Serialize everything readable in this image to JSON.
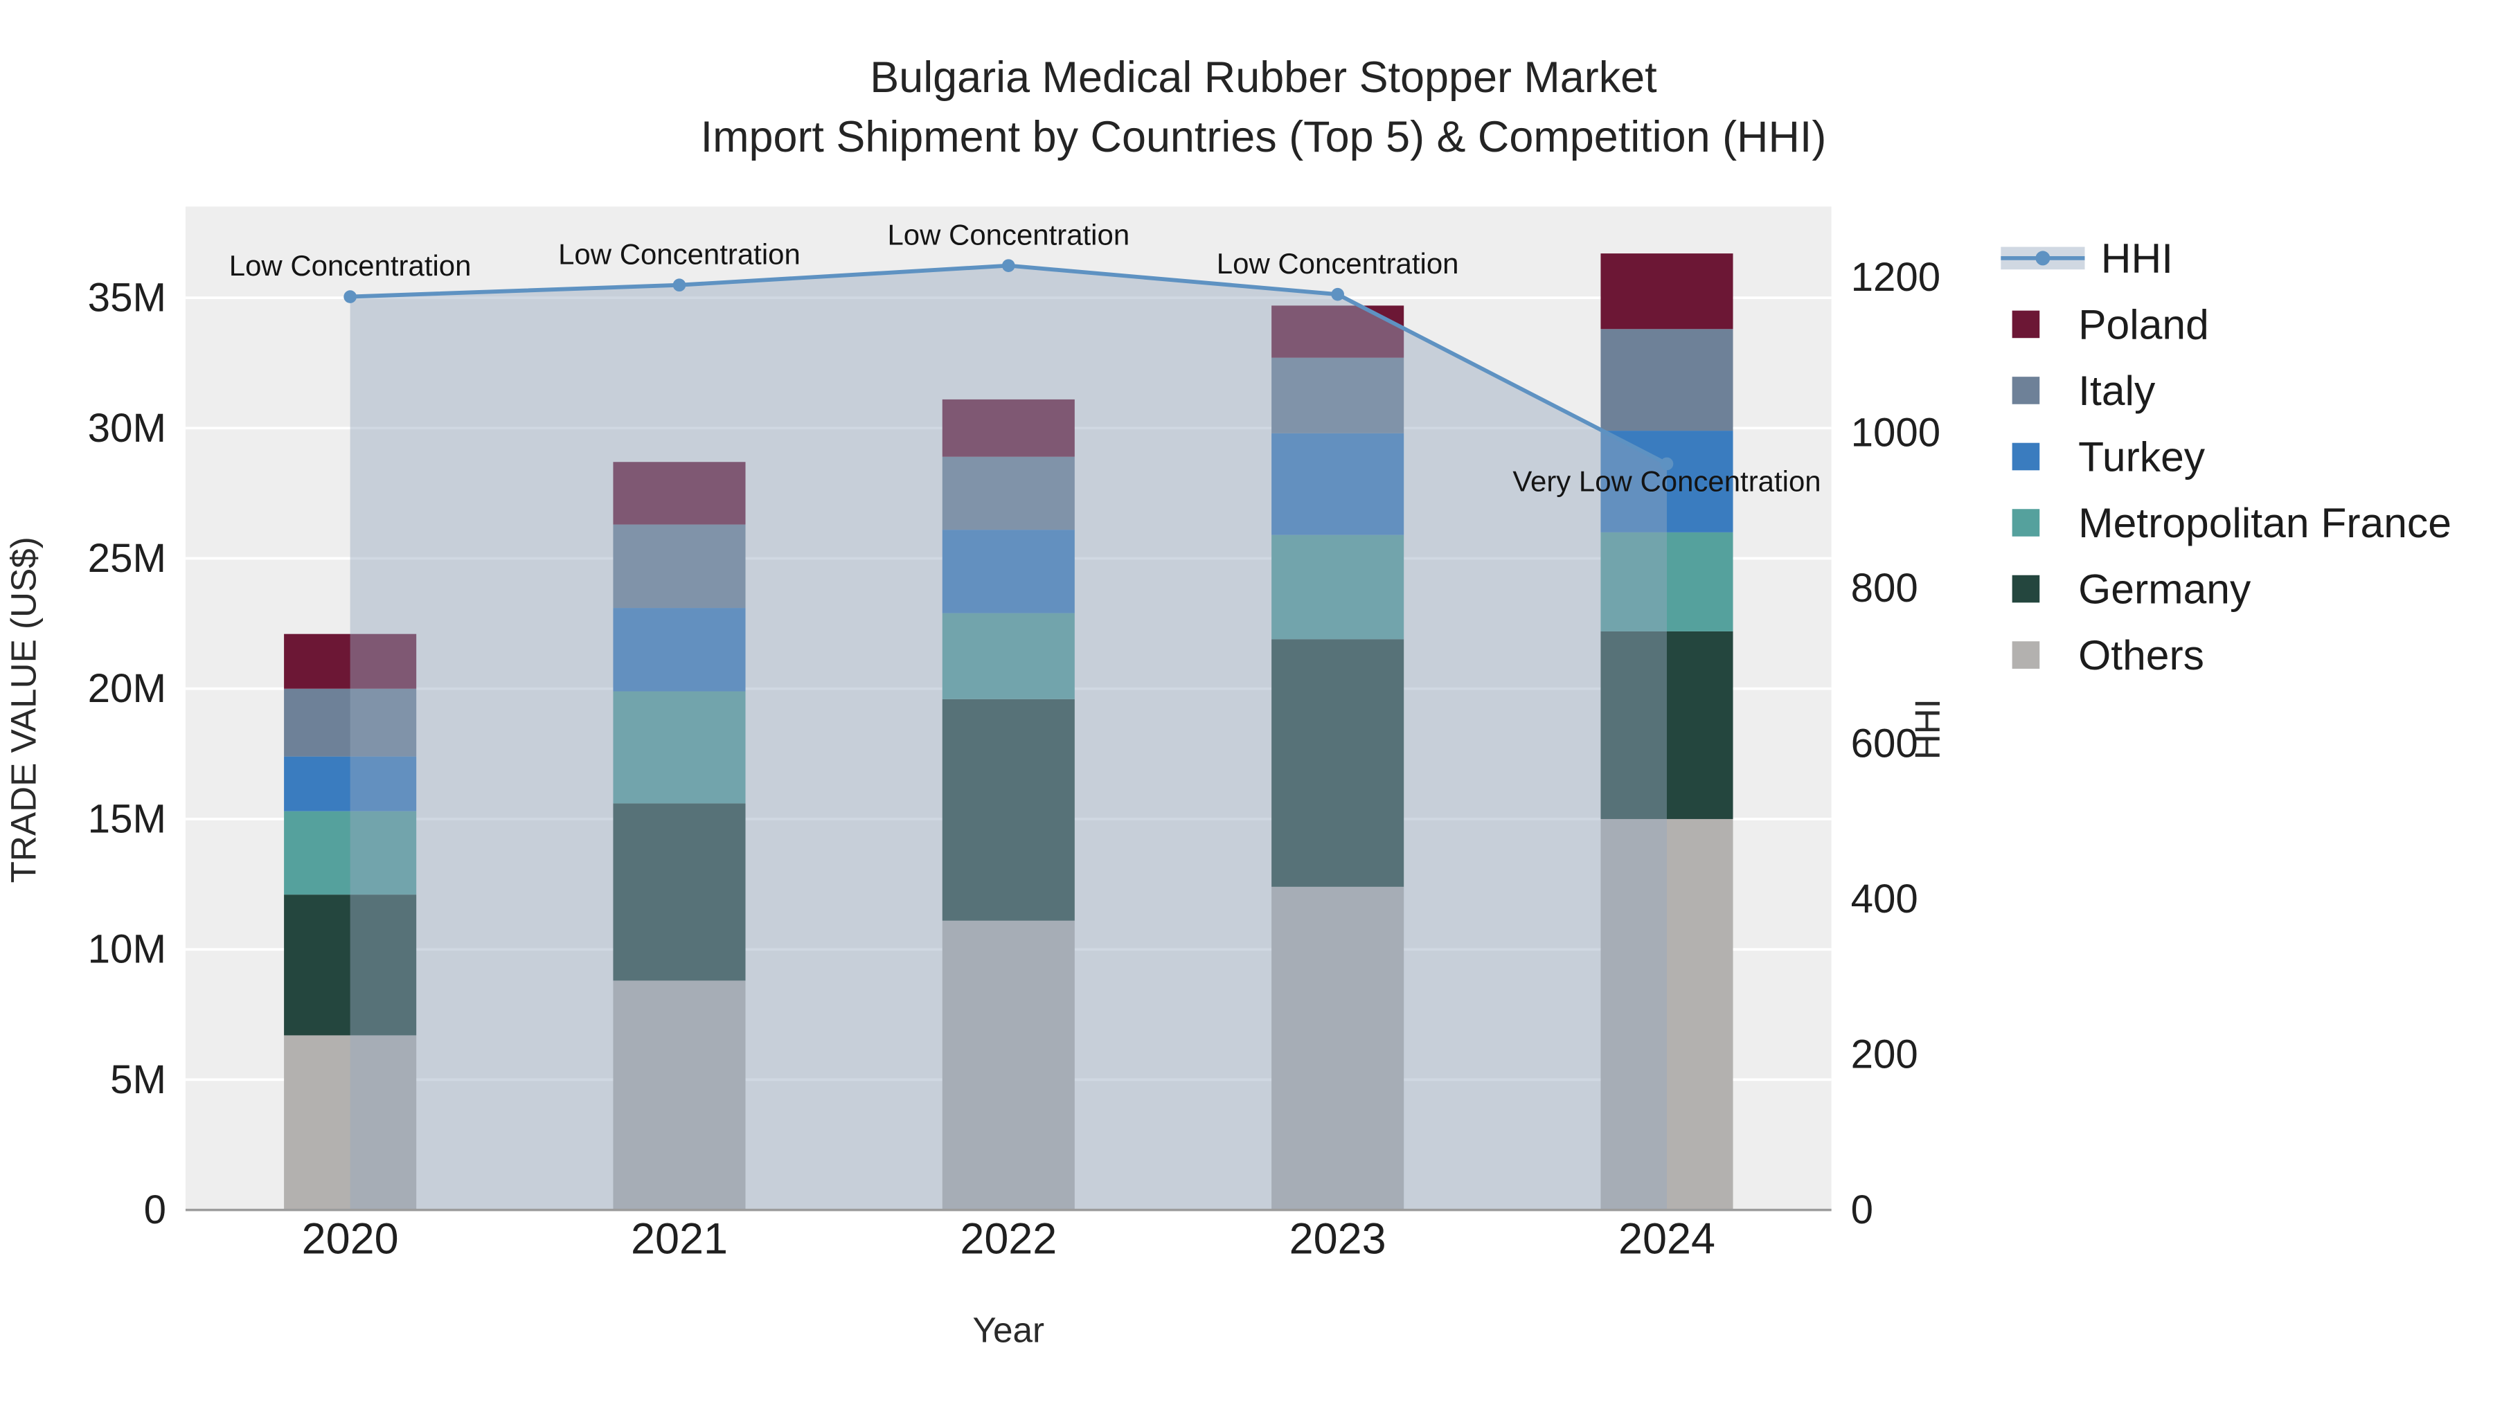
{
  "chart_data": {
    "type": "bar",
    "subtype": "stacked-bars-with-line-overlay",
    "title_lines": [
      "Bulgaria Medical Rubber Stopper Market",
      "Import Shipment by Countries (Top 5) & Competition (HHI)"
    ],
    "title": "Bulgaria Medical Rubber Stopper Market Import Shipment by Countries (Top 5) & Competition (HHI)",
    "xlabel": "Year",
    "ylabel_left": "TRADE VALUE (US$)",
    "ylabel_right": "HHI",
    "categories": [
      "2020",
      "2021",
      "2022",
      "2023",
      "2024"
    ],
    "bar_value_unit": "millions USD",
    "bar_series_bottom_to_top": [
      {
        "name": "Others",
        "color": "#b3b1af",
        "values": [
          6.7,
          8.8,
          11.1,
          12.4,
          15.0
        ]
      },
      {
        "name": "Germany",
        "color": "#24463e",
        "values": [
          5.4,
          6.8,
          8.5,
          9.5,
          7.2
        ]
      },
      {
        "name": "Metropolitan France",
        "color": "#55a19d",
        "values": [
          3.2,
          4.3,
          3.3,
          4.0,
          3.8
        ]
      },
      {
        "name": "Turkey",
        "color": "#3a7cbf",
        "values": [
          2.1,
          3.2,
          3.2,
          3.9,
          3.9
        ]
      },
      {
        "name": "Italy",
        "color": "#6e8198",
        "values": [
          2.6,
          3.2,
          2.8,
          2.9,
          3.9
        ]
      },
      {
        "name": "Poland",
        "color": "#6c1735",
        "values": [
          2.1,
          2.4,
          2.2,
          2.0,
          2.9
        ]
      }
    ],
    "bar_totals_millions": [
      22.1,
      28.7,
      31.1,
      34.7,
      36.7
    ],
    "line_series": {
      "name": "HHI",
      "axis": "right",
      "color": "#5e92c2",
      "area_fill": "rgba(150,168,190,0.45)",
      "values": [
        1175,
        1190,
        1215,
        1178,
        960
      ]
    },
    "annotations": [
      {
        "category": "2020",
        "text": "Low Concentration",
        "position": "above"
      },
      {
        "category": "2021",
        "text": "Low Concentration",
        "position": "above"
      },
      {
        "category": "2022",
        "text": "Low Concentration",
        "position": "above"
      },
      {
        "category": "2023",
        "text": "Low Concentration",
        "position": "above"
      },
      {
        "category": "2024",
        "text": "Very Low Concentration",
        "position": "below"
      }
    ],
    "left_axis": {
      "tick_labels": [
        "0",
        "5M",
        "10M",
        "15M",
        "20M",
        "25M",
        "30M",
        "35M"
      ],
      "tick_values_millions": [
        0,
        5,
        10,
        15,
        20,
        25,
        30,
        35
      ],
      "range_millions": [
        0,
        38.5
      ]
    },
    "right_axis": {
      "tick_labels": [
        "0",
        "200",
        "400",
        "600",
        "800",
        "1000",
        "1200"
      ],
      "tick_values": [
        0,
        200,
        400,
        600,
        800,
        1000,
        1200
      ],
      "range": [
        0,
        1291
      ]
    },
    "legend_order_top_to_bottom": [
      "HHI",
      "Poland",
      "Italy",
      "Turkey",
      "Metropolitan France",
      "Germany",
      "Others"
    ],
    "legend_position": "right",
    "grid": true,
    "colors": {
      "plot_background": "#eeeeee",
      "gridline": "#ffffff",
      "axis_line": "#9c9c9c",
      "text": "#1f1f1f"
    }
  }
}
